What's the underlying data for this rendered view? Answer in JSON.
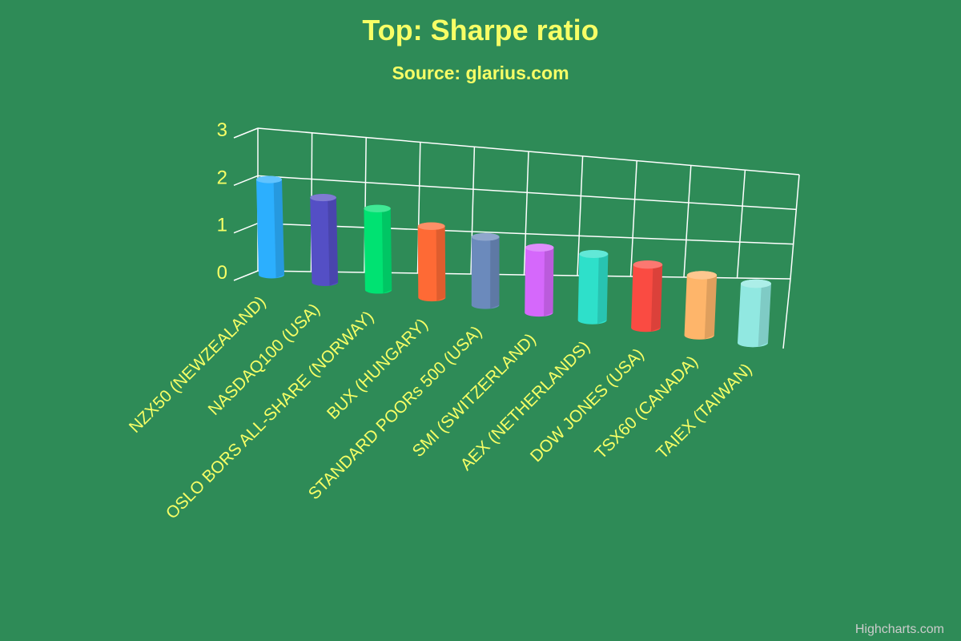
{
  "chart_data": {
    "type": "bar",
    "title": "Top: Sharpe ratio",
    "subtitle": "Source: glarius.com",
    "categories": [
      "NZX50 (NEWZEALAND)",
      "NASDAQ100 (USA)",
      "OSLO BORS ALL-SHARE (NORWAY)",
      "BUX (HUNGARY)",
      "STANDARD POORs 500 (USA)",
      "SMI (SWITZERLAND)",
      "AEX (NETHERLANDS)",
      "DOW JONES (USA)",
      "TSX60 (CANADA)",
      "TAIEX (TAIWAN)"
    ],
    "values": [
      2.05,
      1.85,
      1.8,
      1.6,
      1.55,
      1.5,
      1.55,
      1.5,
      1.45,
      1.45
    ],
    "colors": [
      "#2caffe",
      "#544fc5",
      "#00e272",
      "#fe6a35",
      "#6b8abc",
      "#d568fb",
      "#2ee0ca",
      "#fa4b42",
      "#feb56a",
      "#91e8e1"
    ],
    "ylim": [
      0,
      3
    ],
    "yticks": [
      0,
      1,
      2,
      3
    ],
    "grid": true,
    "legend": "none",
    "text_color": "#f7ff66",
    "grid_color": "#ffffff",
    "background": "#2e8b57",
    "credit": "Highcharts.com"
  }
}
